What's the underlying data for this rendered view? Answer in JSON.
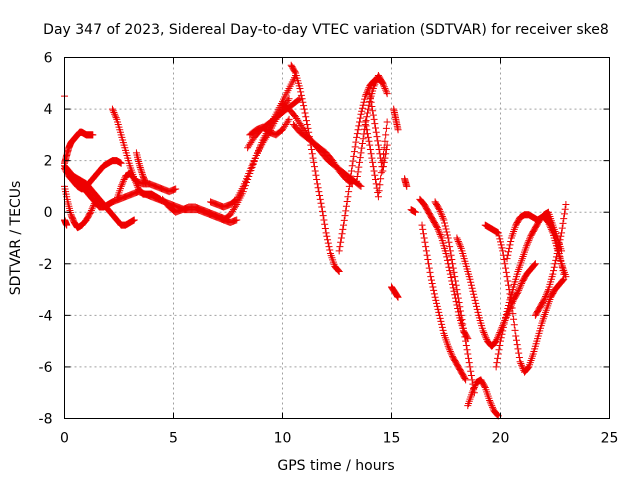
{
  "chart_data": {
    "type": "scatter",
    "title": "Day 347 of 2023, Sidereal Day-to-day VTEC variation (SDTVAR) for receiver ske8",
    "xlabel": "GPS time / hours",
    "ylabel": "SDTVAR / TECUs",
    "xlim": [
      0,
      25
    ],
    "ylim": [
      -8,
      6
    ],
    "x_ticks": [
      0,
      5,
      10,
      15,
      20,
      25
    ],
    "y_ticks": [
      -8,
      -6,
      -4,
      -2,
      0,
      2,
      4,
      6
    ],
    "grid": true,
    "legend": "none",
    "marker": "plus",
    "color": "#ee0000",
    "series": [
      {
        "x": [
          0.0,
          0.1,
          0.2,
          0.3,
          0.4,
          0.5,
          0.6,
          0.7,
          0.8,
          0.9,
          1.0,
          1.1,
          1.2,
          1.3
        ],
        "y": [
          1.9,
          2.2,
          2.5,
          2.7,
          2.8,
          2.9,
          3.0,
          3.1,
          3.1,
          3.05,
          3.0,
          3.0,
          3.0,
          3.0
        ]
      },
      {
        "x": [
          0.0,
          0.2,
          0.4,
          0.6,
          0.8,
          1.0,
          1.2,
          1.4,
          1.6,
          1.8,
          2.0,
          2.2,
          2.4,
          2.6,
          2.8,
          3.0,
          3.2
        ],
        "y": [
          1.8,
          1.6,
          1.4,
          1.3,
          1.2,
          1.1,
          0.9,
          0.7,
          0.5,
          0.3,
          0.1,
          -0.1,
          -0.3,
          -0.5,
          -0.5,
          -0.4,
          -0.3
        ]
      },
      {
        "x": [
          0.0,
          0.2,
          0.4,
          0.6,
          0.8,
          1.0,
          1.2,
          1.4,
          1.6,
          1.8,
          2.0,
          2.2,
          2.4,
          2.6
        ],
        "y": [
          1.7,
          1.4,
          1.2,
          1.0,
          0.9,
          1.0,
          1.2,
          1.4,
          1.6,
          1.8,
          1.9,
          2.0,
          2.0,
          1.9
        ]
      },
      {
        "x": [
          0.0,
          0.15,
          0.3,
          0.45,
          0.6,
          0.8,
          1.0,
          1.2,
          1.4
        ],
        "y": [
          1.0,
          0.4,
          -0.1,
          -0.4,
          -0.6,
          -0.5,
          -0.3,
          0.0,
          0.4
        ]
      },
      {
        "x": [
          0.0,
          0.05,
          0.1
        ],
        "y": [
          -0.3,
          -0.4,
          -0.5
        ]
      },
      {
        "x": [
          0.0
        ],
        "y": [
          4.5
        ]
      },
      {
        "x": [
          0.6,
          0.8,
          1.0,
          1.2,
          1.4,
          1.6,
          1.8,
          2.0,
          2.2,
          2.5,
          2.8,
          3.1,
          3.4,
          3.7,
          4.0,
          4.3,
          4.6,
          4.9,
          5.2,
          5.5,
          5.8,
          6.1,
          6.4,
          6.7,
          7.0,
          7.3,
          7.6,
          7.9
        ],
        "y": [
          1.2,
          1.0,
          0.8,
          0.6,
          0.4,
          0.2,
          0.2,
          0.3,
          0.4,
          0.5,
          0.6,
          0.7,
          0.8,
          0.7,
          0.6,
          0.5,
          0.4,
          0.3,
          0.2,
          0.1,
          0.1,
          0.1,
          0.0,
          -0.1,
          -0.2,
          -0.3,
          -0.4,
          -0.3
        ]
      },
      {
        "x": [
          2.2,
          2.4,
          2.6,
          2.8,
          3.0,
          3.2,
          3.4,
          3.6,
          3.8,
          4.0,
          4.2,
          4.4
        ],
        "y": [
          4.0,
          3.6,
          3.0,
          2.4,
          1.8,
          1.3,
          0.9,
          0.7,
          0.7,
          0.7,
          0.6,
          0.5
        ]
      },
      {
        "x": [
          2.4,
          2.6,
          2.8,
          3.0,
          3.3,
          3.6,
          3.9,
          4.2,
          4.5,
          4.8,
          5.1
        ],
        "y": [
          0.5,
          1.0,
          1.4,
          1.5,
          1.2,
          1.1,
          1.1,
          1.0,
          0.9,
          0.8,
          0.9
        ]
      },
      {
        "x": [
          3.3,
          3.45,
          3.6,
          3.75
        ],
        "y": [
          2.3,
          1.8,
          1.4,
          1.1
        ]
      },
      {
        "x": [
          4.5,
          4.8,
          5.1,
          5.4,
          5.7,
          6.0,
          6.3,
          6.6,
          6.9,
          7.2,
          7.5
        ],
        "y": [
          0.5,
          0.2,
          0.0,
          0.1,
          0.2,
          0.2,
          0.1,
          0.0,
          -0.1,
          -0.2,
          -0.3
        ]
      },
      {
        "x": [
          7.3,
          7.6,
          7.9,
          8.2,
          8.5,
          8.8,
          9.1,
          9.4,
          9.7,
          10.0,
          10.3,
          10.6
        ],
        "y": [
          -0.3,
          -0.1,
          0.3,
          0.8,
          1.5,
          2.2,
          2.8,
          3.3,
          3.8,
          4.3,
          4.8,
          5.3
        ]
      },
      {
        "x": [
          6.7,
          7.0,
          7.3,
          7.6,
          7.9,
          8.2,
          8.5,
          8.8,
          9.1,
          9.4,
          9.7,
          10.0,
          10.3
        ],
        "y": [
          0.4,
          0.3,
          0.2,
          0.3,
          0.5,
          1.0,
          1.6,
          2.2,
          2.7,
          3.1,
          3.6,
          4.0,
          4.4
        ]
      },
      {
        "x": [
          8.4,
          8.7,
          9.0,
          9.3,
          9.6,
          9.9,
          10.2,
          10.5,
          10.8
        ],
        "y": [
          2.5,
          2.9,
          3.2,
          3.4,
          3.6,
          3.8,
          4.0,
          4.2,
          4.4
        ]
      },
      {
        "x": [
          8.5,
          8.8,
          9.1,
          9.4,
          9.7,
          10.0,
          10.3
        ],
        "y": [
          3.0,
          3.2,
          3.3,
          3.1,
          3.0,
          3.2,
          3.6
        ]
      },
      {
        "x": [
          10.4,
          10.6,
          10.8,
          11.0,
          11.2,
          11.4,
          11.6,
          11.8,
          12.0,
          12.2,
          12.4,
          12.6
        ],
        "y": [
          5.7,
          5.4,
          4.8,
          4.0,
          3.1,
          2.1,
          1.1,
          0.2,
          -0.8,
          -1.6,
          -2.1,
          -2.3
        ]
      },
      {
        "x": [
          10.0,
          10.3,
          10.6,
          10.9,
          11.2,
          11.5,
          11.8,
          12.1,
          12.4,
          12.7,
          13.0,
          13.3,
          13.6
        ],
        "y": [
          4.2,
          4.0,
          3.7,
          3.3,
          2.9,
          2.6,
          2.3,
          2.0,
          1.8,
          1.6,
          1.4,
          1.2,
          1.0
        ]
      },
      {
        "x": [
          10.5,
          10.8,
          11.1,
          11.4,
          11.7,
          12.0,
          12.3,
          12.6,
          12.9,
          13.2
        ],
        "y": [
          3.4,
          3.1,
          2.9,
          2.7,
          2.5,
          2.3,
          2.0,
          1.6,
          1.3,
          1.1
        ]
      },
      {
        "x": [
          12.6,
          12.8,
          13.0,
          13.2,
          13.4,
          13.6,
          13.8,
          14.0,
          14.2,
          14.4,
          14.6,
          14.8
        ],
        "y": [
          -1.5,
          -0.5,
          0.6,
          1.8,
          2.9,
          3.8,
          4.5,
          4.9,
          5.1,
          5.2,
          5.0,
          4.6
        ]
      },
      {
        "x": [
          13.4,
          13.6,
          13.8,
          14.0,
          14.2,
          14.4,
          14.6
        ],
        "y": [
          1.2,
          2.3,
          3.4,
          4.3,
          4.9,
          5.3,
          5.0
        ]
      },
      {
        "x": [
          13.8,
          14.0,
          14.2,
          14.4,
          14.6,
          14.8
        ],
        "y": [
          3.5,
          2.6,
          1.6,
          0.6,
          2.0,
          3.5
        ]
      },
      {
        "x": [
          14.0,
          14.2,
          14.4,
          14.6,
          14.8
        ],
        "y": [
          4.6,
          3.6,
          2.6,
          1.6,
          2.6
        ]
      },
      {
        "x": [
          15.1,
          15.2,
          15.3
        ],
        "y": [
          4.0,
          3.6,
          3.2
        ]
      },
      {
        "x": [
          15.0,
          15.15,
          15.3
        ],
        "y": [
          -2.9,
          -3.1,
          -3.3
        ]
      },
      {
        "x": [
          15.6,
          15.7
        ],
        "y": [
          1.3,
          1.0
        ]
      },
      {
        "x": [
          15.9,
          16.1
        ],
        "y": [
          0.1,
          0.0
        ]
      },
      {
        "x": [
          16.3,
          16.5,
          16.7,
          16.9,
          17.1,
          17.3,
          17.5,
          17.7,
          17.9,
          18.1,
          18.3,
          18.5
        ],
        "y": [
          0.5,
          0.3,
          0.0,
          -0.3,
          -0.6,
          -1.0,
          -1.6,
          -2.4,
          -3.2,
          -4.0,
          -4.6,
          -4.9
        ]
      },
      {
        "x": [
          16.4,
          16.6,
          16.8,
          17.0,
          17.2,
          17.4,
          17.6,
          17.8,
          18.0,
          18.2,
          18.4
        ],
        "y": [
          -0.5,
          -1.5,
          -2.5,
          -3.3,
          -4.0,
          -4.7,
          -5.2,
          -5.6,
          -5.9,
          -6.2,
          -6.5
        ]
      },
      {
        "x": [
          17.0,
          17.2,
          17.4,
          17.6,
          17.8,
          18.0,
          18.2,
          18.4,
          18.6,
          18.8
        ],
        "y": [
          0.4,
          0.1,
          -0.3,
          -1.0,
          -2.0,
          -3.0,
          -4.0,
          -5.0,
          -6.0,
          -7.0
        ]
      },
      {
        "x": [
          18.0,
          18.2,
          18.4,
          18.6,
          18.8,
          19.0,
          19.2,
          19.4,
          19.6,
          19.8,
          20.0,
          20.2,
          20.4,
          20.6,
          20.8,
          21.0,
          21.2,
          21.4,
          21.6
        ],
        "y": [
          -1.0,
          -1.4,
          -2.0,
          -2.6,
          -3.3,
          -4.0,
          -4.6,
          -5.0,
          -5.2,
          -5.0,
          -4.6,
          -4.2,
          -3.8,
          -3.4,
          -3.1,
          -2.7,
          -2.4,
          -2.2,
          -2.0
        ]
      },
      {
        "x": [
          18.5,
          18.7,
          18.9,
          19.1,
          19.3,
          19.5,
          19.7,
          19.9
        ],
        "y": [
          -7.5,
          -7.0,
          -6.6,
          -6.5,
          -6.8,
          -7.3,
          -7.7,
          -7.9
        ]
      },
      {
        "x": [
          19.3,
          19.5,
          19.7,
          19.9,
          20.1,
          20.3,
          20.5,
          20.7,
          20.9,
          21.1,
          21.3,
          21.5,
          21.7,
          21.9,
          22.1,
          22.3,
          22.5,
          22.7,
          22.9
        ],
        "y": [
          -0.5,
          -0.6,
          -0.7,
          -0.8,
          -1.5,
          -2.5,
          -3.5,
          -4.8,
          -5.8,
          -6.2,
          -6.0,
          -5.5,
          -4.9,
          -4.3,
          -3.8,
          -3.3,
          -3.0,
          -2.8,
          -2.6
        ]
      },
      {
        "x": [
          19.8,
          20.0,
          20.2,
          20.4,
          20.6,
          20.8,
          21.0,
          21.2,
          21.4,
          21.6,
          21.8,
          22.0,
          22.2,
          22.4,
          22.6,
          22.8
        ],
        "y": [
          -6.0,
          -5.0,
          -4.2,
          -3.5,
          -2.9,
          -2.3,
          -1.8,
          -1.3,
          -0.9,
          -0.6,
          -0.3,
          -0.1,
          0.0,
          -0.5,
          -1.0,
          -1.5
        ]
      },
      {
        "x": [
          20.3,
          20.5,
          20.7,
          20.9,
          21.1,
          21.3,
          21.5,
          21.7,
          21.9,
          22.1,
          22.3,
          22.5,
          22.7,
          22.9
        ],
        "y": [
          -1.8,
          -1.0,
          -0.5,
          -0.2,
          -0.1,
          -0.1,
          -0.2,
          -0.3,
          -0.2,
          -0.1,
          -0.4,
          -1.0,
          -1.6,
          -2.4
        ]
      },
      {
        "x": [
          21.6,
          21.8,
          22.0,
          22.2,
          22.4,
          22.6,
          22.8,
          23.0
        ],
        "y": [
          -4.0,
          -3.7,
          -3.4,
          -3.0,
          -2.4,
          -1.6,
          -0.8,
          0.3
        ]
      },
      {
        "x": [
          22.0,
          22.2,
          22.4,
          22.6,
          22.8,
          23.0
        ],
        "y": [
          -0.2,
          -0.4,
          -0.8,
          -1.4,
          -2.0,
          -2.5
        ]
      }
    ]
  }
}
